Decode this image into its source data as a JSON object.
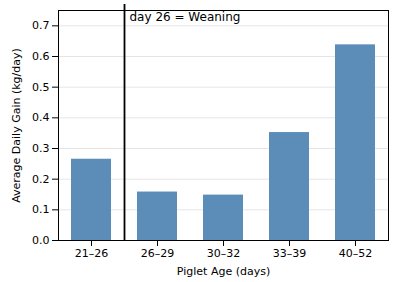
{
  "chart_data": {
    "type": "bar",
    "categories": [
      "21–26",
      "26–29",
      "30–32",
      "33–39",
      "40–52"
    ],
    "values": [
      0.265,
      0.158,
      0.148,
      0.352,
      0.638
    ],
    "color": "#5b8db8",
    "xlabel": "Piglet Age (days)",
    "ylabel": "Average Daily Gain (kg/day)",
    "annotation": "day 26 = Weaning",
    "ylim": [
      0,
      0.75
    ],
    "yticks": [
      {
        "value": 0,
        "label": "0.0"
      },
      0.1,
      0.2,
      0.3,
      0.4,
      0.5,
      0.6,
      0.7
    ],
    "grid": true
  }
}
